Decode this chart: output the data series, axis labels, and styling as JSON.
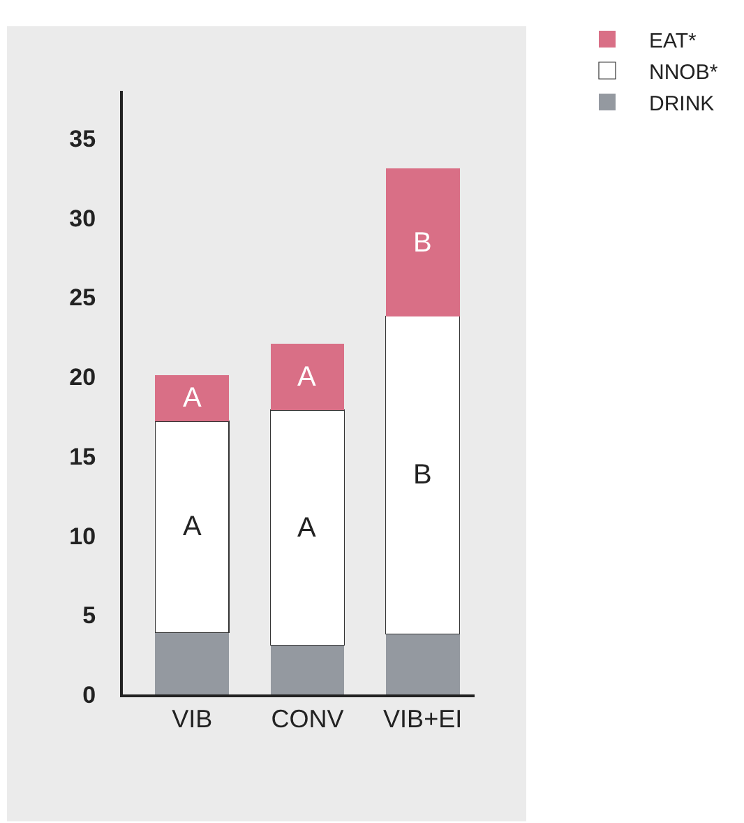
{
  "chart_data": {
    "type": "bar",
    "stacked": true,
    "categories": [
      "VIB",
      "CONV",
      "VIB+EI"
    ],
    "series": [
      {
        "name": "DRINK",
        "color": "#9499a0",
        "values": [
          3.9,
          3.1,
          3.8
        ]
      },
      {
        "name": "NNOB*",
        "color": "#ffffff",
        "values": [
          13.3,
          14.8,
          20.0
        ]
      },
      {
        "name": "EAT*",
        "color": "#d96f86",
        "values": [
          2.9,
          4.2,
          9.3
        ]
      }
    ],
    "ylim": [
      0,
      38
    ],
    "yticks": [
      0,
      5,
      10,
      15,
      20,
      25,
      30,
      35
    ],
    "grid": false,
    "legend": "top right",
    "annotations": [
      "A",
      "A",
      "B",
      "A",
      "A",
      "B"
    ]
  }
}
